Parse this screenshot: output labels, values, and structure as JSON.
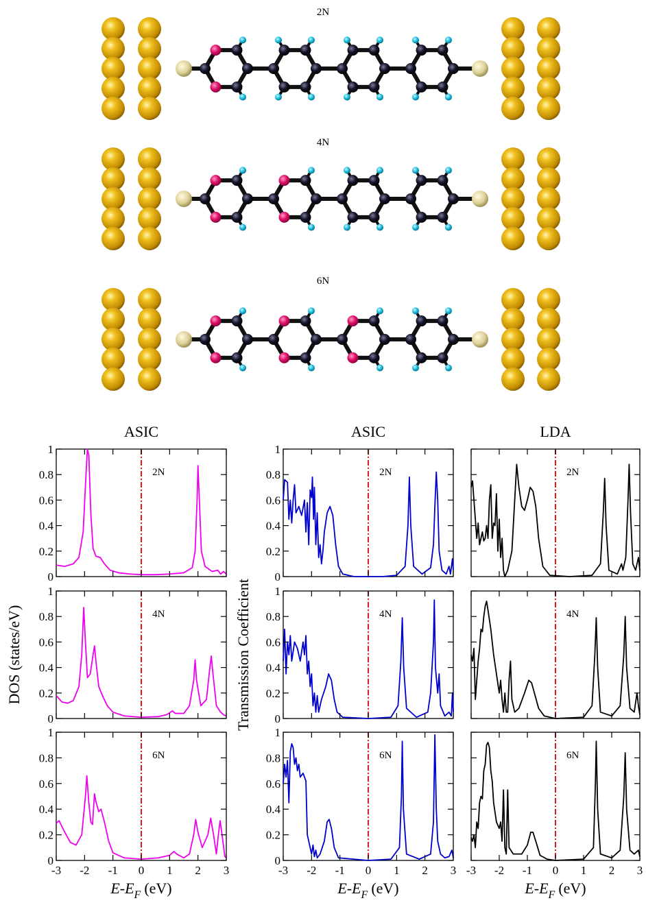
{
  "diagram": {
    "labels": [
      "2N",
      "4N",
      "6N"
    ]
  },
  "chart_data": [
    {
      "type": "line",
      "title": "ASIC",
      "annotation": "2N",
      "show_xticklabels": false,
      "show_yticklabels": true,
      "xlim": [
        -3,
        3
      ],
      "xticks": [
        -3,
        -2,
        -1,
        0,
        1,
        2,
        3
      ],
      "ylim": [
        0,
        1
      ],
      "yticks": [
        0,
        0.2,
        0.4,
        0.6,
        0.8,
        1
      ],
      "vline": {
        "x": 0,
        "color": "#dd0000"
      },
      "x": [
        -3,
        -2.7,
        -2.4,
        -2.2,
        -2.05,
        -1.95,
        -1.9,
        -1.85,
        -1.78,
        -1.7,
        -1.6,
        -1.45,
        -1.3,
        -1.1,
        -0.8,
        -0.4,
        0,
        0.5,
        1,
        1.5,
        1.8,
        1.9,
        1.97,
        2.0,
        2.05,
        2.12,
        2.25,
        2.5,
        2.7,
        2.8,
        2.9,
        3
      ],
      "series": [
        {
          "color": "#ee00ee",
          "values": [
            0.09,
            0.08,
            0.1,
            0.15,
            0.35,
            0.8,
            1.0,
            0.95,
            0.5,
            0.22,
            0.16,
            0.15,
            0.1,
            0.05,
            0.03,
            0.02,
            0.015,
            0.015,
            0.02,
            0.03,
            0.07,
            0.2,
            0.6,
            0.87,
            0.6,
            0.2,
            0.08,
            0.04,
            0.05,
            0.02,
            0.04,
            0.02
          ]
        }
      ]
    },
    {
      "type": "line",
      "title": "ASIC",
      "annotation": "2N",
      "show_xticklabels": false,
      "show_yticklabels": true,
      "xlim": [
        -3,
        3
      ],
      "xticks": [
        -3,
        -2,
        -1,
        0,
        1,
        2,
        3
      ],
      "ylim": [
        0,
        1
      ],
      "yticks": [
        0,
        0.2,
        0.4,
        0.6,
        0.8,
        1
      ],
      "vline": {
        "x": 0,
        "color": "#dd0000"
      },
      "x": [
        -3,
        -2.95,
        -2.85,
        -2.8,
        -2.75,
        -2.7,
        -2.65,
        -2.6,
        -2.55,
        -2.45,
        -2.35,
        -2.25,
        -2.2,
        -2.15,
        -2.1,
        -2.05,
        -2,
        -1.97,
        -1.93,
        -1.9,
        -1.85,
        -1.8,
        -1.75,
        -1.7,
        -1.65,
        -1.6,
        -1.55,
        -1.45,
        -1.35,
        -1.25,
        -1.15,
        -1.05,
        -0.9,
        -0.5,
        0,
        0.5,
        1,
        1.3,
        1.4,
        1.45,
        1.5,
        1.6,
        1.9,
        2.2,
        2.3,
        2.35,
        2.4,
        2.45,
        2.5,
        2.6,
        2.75,
        2.85,
        2.9,
        2.97,
        3
      ],
      "series": [
        {
          "color": "#0000cc",
          "values": [
            0.6,
            0.76,
            0.74,
            0.45,
            0.6,
            0.42,
            0.6,
            0.72,
            0.5,
            0.55,
            0.48,
            0.6,
            0.35,
            0.58,
            0.25,
            0.68,
            0.62,
            0.78,
            0.45,
            0.7,
            0.25,
            0.5,
            0.15,
            0.25,
            0.1,
            0.2,
            0.35,
            0.5,
            0.55,
            0.48,
            0.25,
            0.08,
            0.02,
            0,
            0,
            0,
            0.01,
            0.08,
            0.4,
            0.78,
            0.4,
            0.08,
            0.02,
            0.07,
            0.25,
            0.55,
            0.82,
            0.6,
            0.2,
            0.05,
            0.02,
            0.08,
            0.02,
            0.14,
            0.05
          ]
        }
      ]
    },
    {
      "type": "line",
      "title": "LDA",
      "annotation": "2N",
      "show_xticklabels": false,
      "show_yticklabels": false,
      "xlim": [
        -3,
        3
      ],
      "xticks": [
        -3,
        -2,
        -1,
        0,
        1,
        2,
        3
      ],
      "ylim": [
        0,
        1
      ],
      "yticks": [
        0,
        0.2,
        0.4,
        0.6,
        0.8,
        1
      ],
      "vline": {
        "x": 0,
        "color": "#dd0000"
      },
      "x": [
        -3,
        -2.95,
        -2.9,
        -2.85,
        -2.8,
        -2.75,
        -2.7,
        -2.65,
        -2.6,
        -2.55,
        -2.5,
        -2.45,
        -2.4,
        -2.35,
        -2.3,
        -2.25,
        -2.2,
        -2.15,
        -2.1,
        -2.05,
        -2,
        -1.95,
        -1.9,
        -1.85,
        -1.8,
        -1.7,
        -1.55,
        -1.45,
        -1.38,
        -1.3,
        -1.2,
        -1.1,
        -1,
        -0.9,
        -0.8,
        -0.7,
        -0.6,
        -0.45,
        -0.2,
        0.5,
        1.3,
        1.6,
        1.7,
        1.75,
        1.8,
        1.9,
        2.2,
        2.35,
        2.4,
        2.5,
        2.58,
        2.62,
        2.67,
        2.75,
        2.85,
        2.95,
        3
      ],
      "series": [
        {
          "color": "#000000",
          "values": [
            0.7,
            0.75,
            0.6,
            0.45,
            0.3,
            0.42,
            0.25,
            0.3,
            0.35,
            0.28,
            0.3,
            0.4,
            0.3,
            0.6,
            0.72,
            0.3,
            0.42,
            0.4,
            0.65,
            0.2,
            0.45,
            0.15,
            0.3,
            0.05,
            0,
            0.05,
            0.2,
            0.6,
            0.88,
            0.7,
            0.55,
            0.52,
            0.6,
            0.7,
            0.67,
            0.55,
            0.3,
            0.08,
            0.01,
            0,
            0.01,
            0.1,
            0.5,
            0.77,
            0.4,
            0.05,
            0.02,
            0.1,
            0.05,
            0.15,
            0.6,
            0.88,
            0.5,
            0.1,
            0.05,
            0.15,
            0.05
          ]
        }
      ]
    },
    {
      "type": "line",
      "ylabel": "DOS (states/eV)",
      "annotation": "4N",
      "show_xticklabels": false,
      "show_yticklabels": true,
      "xlim": [
        -3,
        3
      ],
      "xticks": [
        -3,
        -2,
        -1,
        0,
        1,
        2,
        3
      ],
      "ylim": [
        0,
        1
      ],
      "yticks": [
        0,
        0.2,
        0.4,
        0.6,
        0.8,
        1
      ],
      "vline": {
        "x": 0,
        "color": "#dd0000"
      },
      "x": [
        -3,
        -2.8,
        -2.6,
        -2.4,
        -2.2,
        -2.1,
        -2.03,
        -1.97,
        -1.9,
        -1.8,
        -1.7,
        -1.65,
        -1.6,
        -1.5,
        -1.35,
        -1.2,
        -1,
        -0.6,
        0,
        0.6,
        0.9,
        1.1,
        1.2,
        1.5,
        1.7,
        1.85,
        1.9,
        1.95,
        2.1,
        2.3,
        2.42,
        2.47,
        2.53,
        2.65,
        2.8,
        2.9,
        3
      ],
      "series": [
        {
          "color": "#ee00ee",
          "values": [
            0.18,
            0.13,
            0.12,
            0.14,
            0.25,
            0.5,
            0.87,
            0.6,
            0.32,
            0.35,
            0.5,
            0.57,
            0.45,
            0.25,
            0.17,
            0.1,
            0.05,
            0.02,
            0.01,
            0.015,
            0.03,
            0.06,
            0.04,
            0.04,
            0.1,
            0.3,
            0.46,
            0.3,
            0.1,
            0.15,
            0.4,
            0.49,
            0.35,
            0.1,
            0.05,
            0.03,
            0.02
          ]
        }
      ]
    },
    {
      "type": "line",
      "ylabel": "Transmission Coefficient",
      "annotation": "4N",
      "show_xticklabels": false,
      "show_yticklabels": true,
      "xlim": [
        -3,
        3
      ],
      "xticks": [
        -3,
        -2,
        -1,
        0,
        1,
        2,
        3
      ],
      "ylim": [
        0,
        1
      ],
      "yticks": [
        0,
        0.2,
        0.4,
        0.6,
        0.8,
        1
      ],
      "vline": {
        "x": 0,
        "color": "#dd0000"
      },
      "x": [
        -3,
        -2.95,
        -2.9,
        -2.85,
        -2.8,
        -2.75,
        -2.7,
        -2.6,
        -2.5,
        -2.4,
        -2.3,
        -2.25,
        -2.2,
        -2.15,
        -2.1,
        -2.05,
        -2,
        -1.95,
        -1.9,
        -1.85,
        -1.8,
        -1.75,
        -1.65,
        -1.5,
        -1.4,
        -1.3,
        -1.2,
        -1.1,
        -0.9,
        0,
        0.8,
        1.05,
        1.15,
        1.2,
        1.25,
        1.35,
        1.7,
        2.1,
        2.2,
        2.3,
        2.33,
        2.37,
        2.45,
        2.5,
        2.55,
        2.7,
        2.85,
        2.93,
        2.97,
        3
      ],
      "series": [
        {
          "color": "#0000cc",
          "values": [
            0.45,
            0.7,
            0.35,
            0.6,
            0.5,
            0.65,
            0.45,
            0.6,
            0.55,
            0.45,
            0.6,
            0.5,
            0.65,
            0.35,
            0.45,
            0.25,
            0.35,
            0.1,
            0.2,
            0.05,
            0.18,
            0.05,
            0.15,
            0.25,
            0.35,
            0.3,
            0.15,
            0.05,
            0.01,
            0,
            0.01,
            0.1,
            0.45,
            0.79,
            0.4,
            0.08,
            0.01,
            0.05,
            0.2,
            0.6,
            0.93,
            0.4,
            0.2,
            0.35,
            0.1,
            0.02,
            0.05,
            0.02,
            0.2,
            0.05
          ]
        }
      ]
    },
    {
      "type": "line",
      "annotation": "4N",
      "show_xticklabels": false,
      "show_yticklabels": false,
      "xlim": [
        -3,
        3
      ],
      "xticks": [
        -3,
        -2,
        -1,
        0,
        1,
        2,
        3
      ],
      "ylim": [
        0,
        1
      ],
      "yticks": [
        0,
        0.2,
        0.4,
        0.6,
        0.8,
        1
      ],
      "vline": {
        "x": 0,
        "color": "#dd0000"
      },
      "x": [
        -3,
        -2.95,
        -2.9,
        -2.85,
        -2.8,
        -2.75,
        -2.7,
        -2.65,
        -2.6,
        -2.55,
        -2.5,
        -2.45,
        -2.4,
        -2.3,
        -2.2,
        -2.1,
        -2,
        -1.95,
        -1.9,
        -1.85,
        -1.8,
        -1.75,
        -1.7,
        -1.65,
        -1.6,
        -1.55,
        -1.45,
        -1.3,
        -1.1,
        -0.95,
        -0.85,
        -0.75,
        -0.6,
        -0.4,
        0,
        1,
        1.3,
        1.4,
        1.45,
        1.5,
        1.6,
        2,
        2.3,
        2.43,
        2.48,
        2.53,
        2.65,
        2.8,
        2.9,
        2.95,
        3
      ],
      "series": [
        {
          "color": "#000000",
          "values": [
            0.5,
            0.45,
            0.55,
            0.15,
            0.3,
            0.45,
            0.55,
            0.7,
            0.68,
            0.8,
            0.88,
            0.92,
            0.85,
            0.7,
            0.5,
            0.35,
            0.2,
            0.3,
            0.15,
            0.05,
            0.2,
            0.05,
            0.05,
            0.3,
            0.45,
            0.15,
            0.05,
            0.08,
            0.2,
            0.3,
            0.28,
            0.2,
            0.08,
            0.02,
            0,
            0.01,
            0.1,
            0.5,
            0.79,
            0.4,
            0.05,
            0.02,
            0.1,
            0.5,
            0.8,
            0.4,
            0.08,
            0.05,
            0.2,
            0.1,
            0.03
          ]
        }
      ]
    },
    {
      "type": "line",
      "annotation": "6N",
      "show_xticklabels": true,
      "show_yticklabels": true,
      "xlabel": {
        "text": "E-E",
        "subscript": "F",
        "unit": "(eV)"
      },
      "xlim": [
        -3,
        3
      ],
      "xticks": [
        -3,
        -2,
        -1,
        0,
        1,
        2,
        3
      ],
      "ylim": [
        0,
        1
      ],
      "yticks": [
        0,
        0.2,
        0.4,
        0.6,
        0.8,
        1
      ],
      "vline": {
        "x": 0,
        "color": "#dd0000"
      },
      "x": [
        -3,
        -2.9,
        -2.7,
        -2.5,
        -2.3,
        -2.1,
        -1.97,
        -1.92,
        -1.85,
        -1.78,
        -1.72,
        -1.65,
        -1.6,
        -1.5,
        -1.42,
        -1.3,
        -1.15,
        -1,
        -0.6,
        0,
        0.6,
        1,
        1.15,
        1.25,
        1.5,
        1.7,
        1.85,
        1.92,
        2,
        2.15,
        2.35,
        2.45,
        2.55,
        2.65,
        2.72,
        2.78,
        2.85,
        2.95,
        3
      ],
      "series": [
        {
          "color": "#ee00ee",
          "values": [
            0.29,
            0.31,
            0.22,
            0.14,
            0.12,
            0.2,
            0.5,
            0.66,
            0.45,
            0.3,
            0.28,
            0.52,
            0.46,
            0.38,
            0.4,
            0.3,
            0.15,
            0.06,
            0.02,
            0.01,
            0.02,
            0.04,
            0.07,
            0.05,
            0.02,
            0.05,
            0.2,
            0.32,
            0.22,
            0.1,
            0.2,
            0.33,
            0.2,
            0.05,
            0.2,
            0.31,
            0.2,
            0.03,
            0.02
          ]
        }
      ]
    },
    {
      "type": "line",
      "annotation": "6N",
      "show_xticklabels": true,
      "show_yticklabels": true,
      "xlabel": {
        "text": "E-E",
        "subscript": "F",
        "unit": "(eV)"
      },
      "xlim": [
        -3,
        3
      ],
      "xticks": [
        -3,
        -2,
        -1,
        0,
        1,
        2,
        3
      ],
      "ylim": [
        0,
        1
      ],
      "yticks": [
        0,
        0.2,
        0.4,
        0.6,
        0.8,
        1
      ],
      "vline": {
        "x": 0,
        "color": "#dd0000"
      },
      "x": [
        -3,
        -2.95,
        -2.9,
        -2.85,
        -2.8,
        -2.75,
        -2.7,
        -2.65,
        -2.6,
        -2.55,
        -2.5,
        -2.45,
        -2.4,
        -2.3,
        -2.2,
        -2.15,
        -2.1,
        -2.05,
        -2,
        -1.95,
        -1.9,
        -1.85,
        -1.8,
        -1.7,
        -1.55,
        -1.45,
        -1.38,
        -1.3,
        -1.2,
        -1.05,
        0,
        0.8,
        1.1,
        1.17,
        1.2,
        1.24,
        1.35,
        1.8,
        2.2,
        2.3,
        2.35,
        2.4,
        2.45,
        2.55,
        2.7,
        2.85,
        2.95,
        3
      ],
      "series": [
        {
          "color": "#0000cc",
          "values": [
            0.6,
            0.75,
            0.65,
            0.78,
            0.45,
            0.85,
            0.91,
            0.88,
            0.75,
            0.8,
            0.7,
            0.75,
            0.65,
            0.68,
            0.62,
            0.2,
            0.15,
            0.1,
            0.05,
            0.12,
            0.03,
            0.08,
            0.02,
            0.05,
            0.15,
            0.3,
            0.32,
            0.25,
            0.1,
            0.02,
            0,
            0.01,
            0.1,
            0.5,
            0.93,
            0.4,
            0.05,
            0.01,
            0.05,
            0.3,
            0.98,
            0.4,
            0.15,
            0.05,
            0.02,
            0.03,
            0.08,
            0.02
          ]
        }
      ]
    },
    {
      "type": "line",
      "annotation": "6N",
      "show_xticklabels": true,
      "show_yticklabels": false,
      "xlabel": {
        "text": "E-E",
        "subscript": "F",
        "unit": "(eV)"
      },
      "xlim": [
        -3,
        3
      ],
      "xticks": [
        -3,
        -2,
        -1,
        0,
        1,
        2,
        3
      ],
      "ylim": [
        0,
        1
      ],
      "yticks": [
        0,
        0.2,
        0.4,
        0.6,
        0.8,
        1
      ],
      "vline": {
        "x": 0,
        "color": "#dd0000"
      },
      "x": [
        -3,
        -2.95,
        -2.9,
        -2.85,
        -2.8,
        -2.75,
        -2.7,
        -2.65,
        -2.6,
        -2.55,
        -2.5,
        -2.45,
        -2.4,
        -2.35,
        -2.3,
        -2.25,
        -2.2,
        -2.1,
        -2,
        -1.95,
        -1.9,
        -1.85,
        -1.8,
        -1.75,
        -1.7,
        -1.65,
        -1.5,
        -1.2,
        -1,
        -0.88,
        -0.8,
        -0.7,
        -0.55,
        -0.3,
        0,
        1,
        1.35,
        1.42,
        1.45,
        1.5,
        1.6,
        2,
        2.3,
        2.43,
        2.48,
        2.53,
        2.65,
        2.8,
        2.95,
        3
      ],
      "series": [
        {
          "color": "#000000",
          "values": [
            0.18,
            0.15,
            0.2,
            0.1,
            0.3,
            0.25,
            0.45,
            0.5,
            0.48,
            0.7,
            0.75,
            0.9,
            0.92,
            0.88,
            0.7,
            0.62,
            0.45,
            0.3,
            0.25,
            0.3,
            0.15,
            0.55,
            0.1,
            0.05,
            0.55,
            0.1,
            0.05,
            0.05,
            0.12,
            0.22,
            0.22,
            0.15,
            0.04,
            0.01,
            0,
            0.01,
            0.1,
            0.6,
            0.93,
            0.4,
            0.05,
            0.02,
            0.08,
            0.5,
            0.84,
            0.4,
            0.08,
            0.05,
            0.08,
            0.03
          ]
        }
      ]
    }
  ]
}
